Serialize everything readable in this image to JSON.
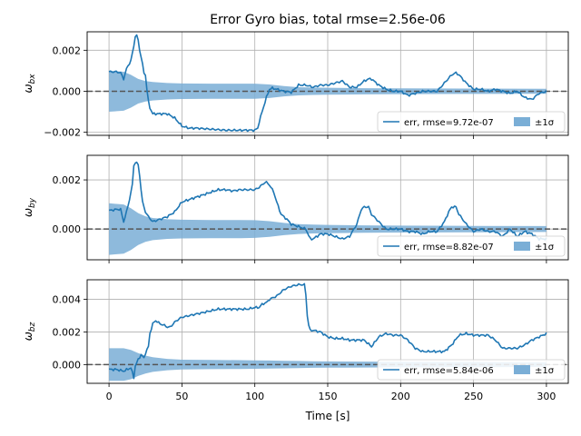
{
  "chart_data": {
    "type": "line",
    "title": "Error Gyro bias, total rmse=2.56e-06",
    "xlabel": "Time [s]",
    "xlim": [
      -15,
      315
    ],
    "xticks": [
      0,
      50,
      100,
      150,
      200,
      250,
      300
    ],
    "grid": true,
    "legend_position": "lower-right",
    "colors": {
      "err": "#1f77b4",
      "sigma": "#7aaed6",
      "zero": "#555555"
    },
    "panels": [
      {
        "ylabel": "ω_bx",
        "ylim": [
          -0.00215,
          0.0029
        ],
        "yticks": [
          -0.002,
          0.0,
          0.002
        ],
        "ytick_labels": [
          "−0.002",
          "0.000",
          "0.002"
        ],
        "legend": {
          "series": "err, rmse=9.72e-07",
          "band": "±1σ"
        },
        "err": {
          "x": [
            0,
            5,
            8,
            10,
            12,
            15,
            17,
            18,
            19,
            20,
            21,
            22,
            23,
            24,
            25,
            26,
            27,
            28,
            30,
            35,
            40,
            45,
            50,
            55,
            60,
            70,
            80,
            90,
            95,
            100,
            102,
            103,
            105,
            108,
            110,
            112,
            115,
            120,
            125,
            130,
            135,
            140,
            145,
            150,
            155,
            160,
            165,
            170,
            175,
            178,
            180,
            185,
            190,
            195,
            200,
            205,
            210,
            215,
            220,
            225,
            230,
            235,
            238,
            240,
            245,
            250,
            255,
            260,
            265,
            270,
            275,
            280,
            285,
            290,
            295,
            300
          ],
          "y": [
            0.00095,
            0.00095,
            0.0009,
            0.0006,
            0.0011,
            0.0015,
            0.0022,
            0.0027,
            0.0027,
            0.0025,
            0.002,
            0.0017,
            0.0013,
            0.0009,
            0.0008,
            0.0001,
            -0.0005,
            -0.0008,
            -0.0011,
            -0.0011,
            -0.0011,
            -0.0013,
            -0.0017,
            -0.0018,
            -0.0018,
            -0.00185,
            -0.0019,
            -0.0019,
            -0.0019,
            -0.0019,
            -0.0018,
            -0.0015,
            -0.001,
            -0.0003,
            0.0001,
            0.00015,
            0.0001,
            0.0,
            -5e-05,
            0.0003,
            0.0003,
            0.0002,
            0.0003,
            0.0003,
            0.0004,
            0.0005,
            0.0002,
            0.0002,
            0.0005,
            0.0006,
            0.0006,
            0.0003,
            0.0001,
            0.0,
            0.0,
            -0.0002,
            -0.0001,
            0.0,
            0.0,
            0.0,
            0.0004,
            0.0008,
            0.0009,
            0.0008,
            0.0004,
            0.0001,
            0.0001,
            0.0,
            0.0001,
            0.0,
            -0.0001,
            0.0,
            -0.0003,
            -0.0004,
            -0.0001,
            0.0
          ]
        },
        "sigma": {
          "x": [
            0,
            10,
            15,
            20,
            25,
            30,
            40,
            50,
            70,
            90,
            100,
            110,
            120,
            130,
            140,
            150,
            175,
            200,
            250,
            300
          ],
          "y": [
            0.001,
            0.00095,
            0.0008,
            0.0006,
            0.0005,
            0.00045,
            0.0004,
            0.00038,
            0.00037,
            0.00037,
            0.00037,
            0.00033,
            0.00025,
            0.0002,
            0.00018,
            0.00017,
            0.00015,
            0.00014,
            0.00013,
            0.00012
          ]
        }
      },
      {
        "ylabel": "ω_by",
        "ylim": [
          -0.00125,
          0.003
        ],
        "yticks": [
          0.0,
          0.002
        ],
        "ytick_labels": [
          "0.000",
          "0.002"
        ],
        "legend": {
          "series": "err, rmse=8.82e-07",
          "band": "±1σ"
        },
        "err": {
          "x": [
            0,
            5,
            8,
            10,
            12,
            14,
            16,
            17,
            18,
            19,
            20,
            21,
            22,
            23,
            24,
            25,
            27,
            30,
            35,
            40,
            45,
            50,
            55,
            60,
            65,
            70,
            75,
            80,
            85,
            90,
            95,
            100,
            103,
            105,
            107,
            108,
            110,
            113,
            115,
            118,
            120,
            122,
            125,
            130,
            135,
            138,
            140,
            145,
            150,
            155,
            160,
            165,
            170,
            173,
            175,
            178,
            180,
            185,
            190,
            195,
            200,
            205,
            210,
            215,
            220,
            225,
            230,
            233,
            235,
            238,
            240,
            245,
            250,
            255,
            260,
            265,
            270,
            275,
            280,
            285,
            290,
            295,
            300
          ],
          "y": [
            0.00075,
            0.0008,
            0.0008,
            0.0003,
            0.0007,
            0.0012,
            0.0018,
            0.0026,
            0.0027,
            0.0027,
            0.0026,
            0.0022,
            0.0016,
            0.0011,
            0.0009,
            0.0007,
            0.0005,
            0.0003,
            0.0004,
            0.0005,
            0.0007,
            0.0011,
            0.0012,
            0.0013,
            0.0014,
            0.0015,
            0.0016,
            0.0016,
            0.00155,
            0.0016,
            0.0016,
            0.0016,
            0.0017,
            0.0018,
            0.0019,
            0.0019,
            0.0018,
            0.0015,
            0.0011,
            0.0006,
            0.0005,
            0.0004,
            0.0002,
            0.0001,
            0.0,
            -0.0004,
            -0.0004,
            -0.0002,
            -0.0002,
            -0.0003,
            -0.0004,
            -0.0003,
            0.0002,
            0.0008,
            0.0009,
            0.0009,
            0.0006,
            0.0003,
            0.0,
            0.0,
            0.0,
            -0.0001,
            -0.0001,
            -0.0002,
            -0.0001,
            -0.0001,
            0.0003,
            0.0007,
            0.0009,
            0.0009,
            0.0006,
            0.0002,
            -0.0001,
            0.0,
            -0.0001,
            -0.0001,
            -0.0003,
            0.0,
            -0.0003,
            -0.0001,
            -0.0002,
            -0.0004,
            -0.0004
          ]
        },
        "sigma": {
          "x": [
            0,
            10,
            15,
            20,
            25,
            30,
            40,
            50,
            70,
            90,
            100,
            110,
            120,
            130,
            140,
            150,
            175,
            200,
            250,
            300
          ],
          "y": [
            0.00105,
            0.001,
            0.00085,
            0.00065,
            0.00052,
            0.00045,
            0.0004,
            0.00038,
            0.00037,
            0.00037,
            0.00036,
            0.00032,
            0.00025,
            0.0002,
            0.00018,
            0.00017,
            0.00015,
            0.00014,
            0.00013,
            0.00012
          ]
        }
      },
      {
        "ylabel": "ω_bz",
        "ylim": [
          -0.00115,
          0.0052
        ],
        "yticks": [
          0.0,
          0.002,
          0.004
        ],
        "ytick_labels": [
          "0.000",
          "0.002",
          "0.004"
        ],
        "legend": {
          "series": "err, rmse=5.84e-06",
          "band": "±1σ"
        },
        "err": {
          "x": [
            0,
            5,
            10,
            15,
            17,
            18,
            20,
            22,
            24,
            25,
            27,
            28,
            30,
            32,
            35,
            38,
            40,
            42,
            45,
            48,
            50,
            55,
            60,
            65,
            70,
            75,
            80,
            85,
            90,
            95,
            100,
            103,
            105,
            108,
            110,
            115,
            120,
            125,
            130,
            132,
            134,
            135,
            136,
            137,
            138,
            140,
            145,
            150,
            155,
            160,
            165,
            170,
            175,
            180,
            185,
            190,
            195,
            200,
            205,
            210,
            215,
            220,
            225,
            230,
            235,
            240,
            245,
            250,
            255,
            260,
            265,
            270,
            275,
            280,
            285,
            290,
            295,
            300
          ],
          "y": [
            -0.0003,
            -0.0003,
            -0.0004,
            -0.0002,
            -0.0008,
            -0.0001,
            0.0003,
            0.0006,
            0.0004,
            0.0007,
            0.0011,
            0.0019,
            0.0025,
            0.0027,
            0.0025,
            0.0024,
            0.0023,
            0.0023,
            0.0026,
            0.0028,
            0.0029,
            0.003,
            0.0031,
            0.0032,
            0.0033,
            0.0034,
            0.0034,
            0.0034,
            0.0034,
            0.0034,
            0.0035,
            0.0035,
            0.0037,
            0.0038,
            0.004,
            0.0042,
            0.0046,
            0.0048,
            0.0049,
            0.0049,
            0.0049,
            0.0043,
            0.003,
            0.0024,
            0.0021,
            0.0021,
            0.002,
            0.0017,
            0.0016,
            0.0016,
            0.0015,
            0.0015,
            0.0015,
            0.0011,
            0.0017,
            0.0019,
            0.0018,
            0.0018,
            0.0015,
            0.001,
            0.0008,
            0.0008,
            0.0008,
            0.0008,
            0.0012,
            0.0018,
            0.0019,
            0.0018,
            0.0018,
            0.0018,
            0.0015,
            0.001,
            0.001,
            0.001,
            0.0012,
            0.0015,
            0.0017,
            0.0019
          ]
        },
        "sigma": {
          "x": [
            0,
            10,
            15,
            20,
            25,
            30,
            40,
            50,
            70,
            90,
            100,
            110,
            120,
            130,
            140,
            150,
            175,
            200,
            250,
            300
          ],
          "y": [
            0.001,
            0.001,
            0.0009,
            0.0007,
            0.00055,
            0.00045,
            0.00035,
            0.0003,
            0.00028,
            0.00027,
            0.00026,
            0.00025,
            0.00023,
            0.00022,
            0.0002,
            0.00019,
            0.00018,
            0.00017,
            0.00016,
            0.00015
          ]
        }
      }
    ]
  }
}
